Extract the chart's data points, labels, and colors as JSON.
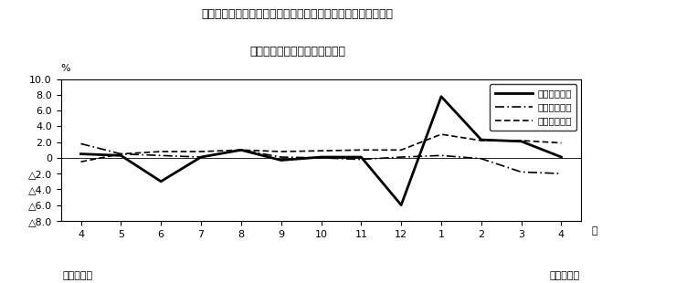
{
  "title_line1": "第４図　賃金、労働時間、常用雇用指数　対前年同月比の推移",
  "title_line2": "（規模５人以上　調査産業計）",
  "xlabel_right": "月",
  "ylabel": "%",
  "x_labels": [
    "4",
    "5",
    "6",
    "7",
    "8",
    "9",
    "10",
    "11",
    "12",
    "1",
    "2",
    "3",
    "4"
  ],
  "x_bottom_left": "平成２２年",
  "x_bottom_right": "平成２３年",
  "ylim": [
    -8.0,
    10.0
  ],
  "yticks": [
    10.0,
    8.0,
    6.0,
    4.0,
    2.0,
    0.0,
    -2.0,
    -4.0,
    -6.0,
    -8.0
  ],
  "ytick_labels": [
    "10.0",
    "8.0",
    "6.0",
    "4.0",
    "2.0",
    "0",
    "△2.0",
    "△4.0",
    "△6.0",
    "△8.0"
  ],
  "legend_entries": [
    "現金給与総額",
    "総実労働時間",
    "常用雇用指数"
  ],
  "line_solid": [
    0.5,
    0.3,
    -3.0,
    0.1,
    1.0,
    -0.3,
    0.1,
    0.1,
    -6.0,
    7.8,
    2.3,
    2.1,
    0.1
  ],
  "line_dashdot": [
    1.8,
    0.5,
    0.3,
    0.1,
    1.0,
    0.1,
    0.0,
    -0.2,
    0.1,
    0.3,
    -0.1,
    -1.8,
    -2.0
  ],
  "line_dashed": [
    -0.5,
    0.5,
    0.8,
    0.8,
    1.0,
    0.8,
    0.9,
    1.0,
    1.0,
    3.0,
    2.2,
    2.2,
    1.9
  ],
  "line_color": "#000000",
  "bg_color": "#ffffff",
  "grid_color": "#cccccc"
}
